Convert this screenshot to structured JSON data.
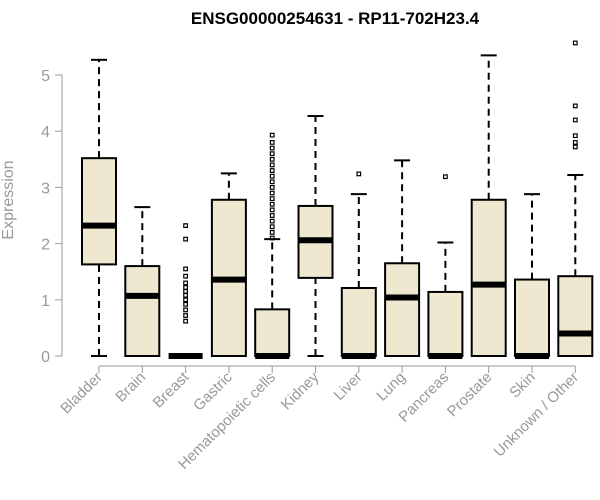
{
  "chart_data": {
    "type": "boxplot",
    "title": "ENSG00000254631 - RP11-702H23.4",
    "xlabel": "",
    "ylabel": "Expression",
    "ylim": [
      0,
      5.6
    ],
    "yticks": [
      0,
      1,
      2,
      3,
      4,
      5
    ],
    "box_color": "#EEE8D0",
    "grid": false,
    "categories": [
      "Bladder",
      "Brain",
      "Breast",
      "Gastric",
      "Hematopoietic cells",
      "Kidney",
      "Liver",
      "Lung",
      "Pancreas",
      "Prostate",
      "Skin",
      "Unknown / Other"
    ],
    "boxes": [
      {
        "min": 0,
        "q1": 1.63,
        "median": 2.32,
        "q3": 3.52,
        "max": 5.27,
        "outliers": []
      },
      {
        "min": 0,
        "q1": 0,
        "median": 1.07,
        "q3": 1.6,
        "max": 2.65,
        "outliers": []
      },
      {
        "min": 0,
        "q1": 0,
        "median": 0,
        "q3": 0,
        "max": 0,
        "outliers": [
          0.62,
          0.72,
          0.82,
          0.92,
          1.0,
          1.08,
          1.15,
          1.22,
          1.3,
          1.42,
          1.55,
          2.08,
          2.32
        ]
      },
      {
        "min": 0,
        "q1": 0,
        "median": 1.36,
        "q3": 2.78,
        "max": 3.25,
        "outliers": []
      },
      {
        "min": 0,
        "q1": 0,
        "median": 0,
        "q3": 0.83,
        "max": 2.08,
        "outliers": [
          2.1,
          2.2,
          2.3,
          2.4,
          2.5,
          2.6,
          2.7,
          2.8,
          2.9,
          3.0,
          3.1,
          3.2,
          3.3,
          3.4,
          3.5,
          3.6,
          3.7,
          3.8,
          3.93
        ]
      },
      {
        "min": 0,
        "q1": 1.39,
        "median": 2.06,
        "q3": 2.67,
        "max": 4.27,
        "outliers": []
      },
      {
        "min": 0,
        "q1": 0,
        "median": 0,
        "q3": 1.21,
        "max": 2.88,
        "outliers": [
          3.24
        ]
      },
      {
        "min": 0,
        "q1": 0,
        "median": 1.04,
        "q3": 1.65,
        "max": 3.48,
        "outliers": []
      },
      {
        "min": 0,
        "q1": 0,
        "median": 0,
        "q3": 1.14,
        "max": 2.02,
        "outliers": [
          3.19
        ]
      },
      {
        "min": 0,
        "q1": 0,
        "median": 1.27,
        "q3": 2.78,
        "max": 5.35,
        "outliers": []
      },
      {
        "min": 0,
        "q1": 0,
        "median": 0,
        "q3": 1.36,
        "max": 2.88,
        "outliers": []
      },
      {
        "min": 0,
        "q1": 0,
        "median": 0.4,
        "q3": 1.42,
        "max": 3.22,
        "outliers": [
          3.72,
          3.8,
          3.92,
          4.2,
          4.45,
          5.57
        ]
      }
    ]
  }
}
